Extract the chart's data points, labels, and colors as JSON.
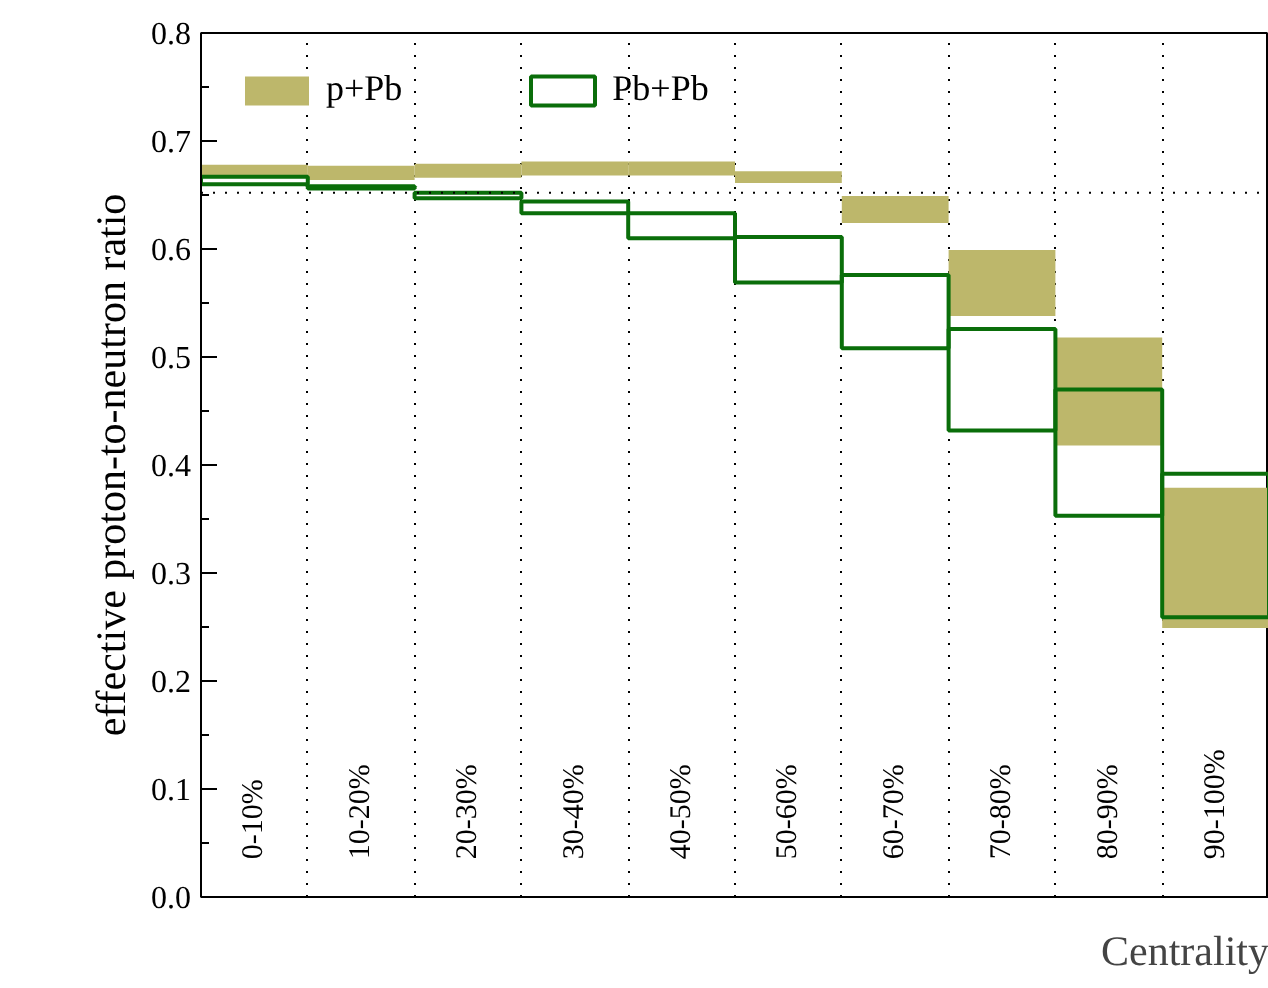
{
  "chart_data": {
    "type": "bar",
    "xlabel": "Centrality",
    "ylabel": "effective proton-to-neutron ratio",
    "categories": [
      "0-10%",
      "10-20%",
      "20-30%",
      "30-40%",
      "40-50%",
      "50-60%",
      "60-70%",
      "70-80%",
      "80-90%",
      "90-100%"
    ],
    "series": [
      {
        "name": "p+Pb",
        "color": "#bdb76b",
        "base": [
          0.667,
          0.664,
          0.666,
          0.668,
          0.668,
          0.661,
          0.624,
          0.538,
          0.418,
          0.249
        ],
        "values": [
          0.011,
          0.013,
          0.013,
          0.013,
          0.013,
          0.011,
          0.025,
          0.061,
          0.1,
          0.13
        ]
      },
      {
        "name": "Pb+Pb",
        "color": "#0a6e0a",
        "base": [
          0.66,
          0.656,
          0.647,
          0.633,
          0.61,
          0.569,
          0.508,
          0.432,
          0.353,
          0.259
        ],
        "values": [
          0.007,
          0.002,
          0.005,
          0.011,
          0.023,
          0.042,
          0.068,
          0.094,
          0.117,
          0.133
        ]
      }
    ],
    "ylim": [
      0,
      0.8
    ],
    "yticks": [
      {
        "value": 0,
        "label": "0.0"
      },
      {
        "value": 0.1,
        "label": "0.1"
      },
      {
        "value": 0.2,
        "label": "0.2"
      },
      {
        "value": 0.3,
        "label": "0.3"
      },
      {
        "value": 0.4,
        "label": "0.4"
      },
      {
        "value": 0.5,
        "label": "0.5"
      },
      {
        "value": 0.6,
        "label": "0.6"
      },
      {
        "value": 0.7,
        "label": "0.7"
      },
      {
        "value": 0.8,
        "label": "0.8"
      }
    ],
    "ref_lines": [
      {
        "axis": "y",
        "value": 0.652,
        "line_style": "dotted",
        "color": "#000000"
      }
    ],
    "grid": "x",
    "legend": "top left",
    "tick_labels": "y"
  }
}
